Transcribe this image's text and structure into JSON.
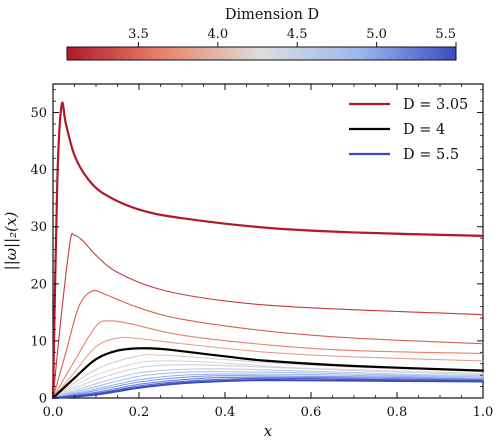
{
  "chart_data": {
    "type": "line",
    "xlabel": "x",
    "ylabel": "||ω||₂(x)",
    "xlim": [
      0,
      1.0
    ],
    "ylim": [
      0,
      55
    ],
    "x_ticks": [
      "0.0",
      "0.2",
      "0.4",
      "0.6",
      "0.8",
      "1.0"
    ],
    "y_ticks": [
      "0",
      "10",
      "20",
      "30",
      "40",
      "50"
    ],
    "x_tick_values": [
      0,
      0.2,
      0.4,
      0.6,
      0.8,
      1.0
    ],
    "y_tick_values": [
      0,
      10,
      20,
      30,
      40,
      50
    ],
    "grid": false,
    "legend_position": "top-right",
    "legend": [
      {
        "label": "D = 3.05",
        "color": "#b2182b"
      },
      {
        "label": "D = 4",
        "color": "#000000"
      },
      {
        "label": "D = 5.5",
        "color": "#3b4cc0"
      }
    ],
    "colorbar": {
      "title": "Dimension D",
      "range": [
        3.05,
        5.5
      ],
      "ticks": [
        "3.5",
        "4.0",
        "4.5",
        "5.0",
        "5.5"
      ],
      "tick_values": [
        3.5,
        4.0,
        4.5,
        5.0,
        5.5
      ],
      "colormap": "coolwarm_r",
      "colors": [
        "#b2182b",
        "#e8856b",
        "#dddddd",
        "#9db8f0",
        "#3b4cc0"
      ]
    },
    "series": [
      {
        "dimension": 3.05,
        "emphasis": "thick",
        "x": [
          0,
          0.01,
          0.02,
          0.03,
          0.05,
          0.08,
          0.12,
          0.2,
          0.3,
          0.5,
          0.7,
          1.0
        ],
        "y": [
          0,
          38,
          51.3,
          48,
          42.5,
          38.5,
          35.7,
          33,
          31.5,
          29.8,
          29,
          28.4
        ]
      },
      {
        "dimension": 3.25,
        "x": [
          0,
          0.02,
          0.04,
          0.05,
          0.07,
          0.1,
          0.15,
          0.25,
          0.4,
          0.6,
          1.0
        ],
        "y": [
          0,
          15,
          27.5,
          28.5,
          27.5,
          25,
          22,
          19,
          17,
          15.8,
          14.6
        ]
      },
      {
        "dimension": 3.45,
        "x": [
          0,
          0.03,
          0.06,
          0.09,
          0.12,
          0.2,
          0.3,
          0.5,
          0.7,
          1.0
        ],
        "y": [
          0,
          8,
          16,
          18.7,
          18.2,
          15.8,
          13.8,
          11.7,
          10.5,
          9.5
        ]
      },
      {
        "dimension": 3.65,
        "x": [
          0,
          0.05,
          0.1,
          0.13,
          0.18,
          0.3,
          0.5,
          0.7,
          1.0
        ],
        "y": [
          0,
          6.5,
          12.6,
          13.5,
          13,
          11,
          9.3,
          8.3,
          7.8
        ]
      },
      {
        "dimension": 3.85,
        "x": [
          0,
          0.05,
          0.1,
          0.15,
          0.2,
          0.3,
          0.5,
          0.7,
          1.0
        ],
        "y": [
          0,
          4.5,
          9,
          10.5,
          10.4,
          9.5,
          8,
          7.2,
          6.5
        ]
      },
      {
        "dimension": 4.0,
        "emphasis": "thick",
        "color": "#000000",
        "x": [
          0,
          0.05,
          0.1,
          0.15,
          0.2,
          0.25,
          0.3,
          0.4,
          0.5,
          0.7,
          1.0
        ],
        "y": [
          0,
          3.5,
          6.8,
          8.3,
          8.7,
          8.6,
          8.2,
          7.3,
          6.5,
          5.6,
          4.8
        ]
      },
      {
        "dimension": 4.15,
        "x": [
          0,
          0.1,
          0.2,
          0.25,
          0.3,
          0.5,
          0.7,
          1.0
        ],
        "y": [
          0,
          5,
          7.4,
          7.5,
          7.3,
          6.2,
          5.4,
          4.6
        ]
      },
      {
        "dimension": 4.3,
        "x": [
          0,
          0.1,
          0.2,
          0.25,
          0.3,
          0.4,
          0.6,
          1.0
        ],
        "y": [
          0,
          4,
          6.2,
          6.5,
          6.5,
          6.1,
          5.2,
          4.3
        ]
      },
      {
        "dimension": 4.45,
        "x": [
          0,
          0.1,
          0.2,
          0.28,
          0.35,
          0.5,
          0.7,
          1.0
        ],
        "y": [
          0,
          3.2,
          5.3,
          5.8,
          5.8,
          5.4,
          4.8,
          4.1
        ]
      },
      {
        "dimension": 4.6,
        "x": [
          0,
          0.1,
          0.2,
          0.3,
          0.4,
          0.6,
          0.8,
          1.0
        ],
        "y": [
          0,
          2.5,
          4.4,
          5,
          5.1,
          4.7,
          4.2,
          3.9
        ]
      },
      {
        "dimension": 4.75,
        "x": [
          0,
          0.1,
          0.2,
          0.3,
          0.4,
          0.6,
          0.8,
          1.0
        ],
        "y": [
          0,
          2,
          3.8,
          4.5,
          4.6,
          4.4,
          4,
          3.7
        ]
      },
      {
        "dimension": 4.9,
        "x": [
          0,
          0.1,
          0.2,
          0.3,
          0.4,
          0.6,
          0.8,
          1.0
        ],
        "y": [
          0,
          1.6,
          3.2,
          4,
          4.2,
          4.1,
          3.8,
          3.5
        ]
      },
      {
        "dimension": 5.05,
        "x": [
          0,
          0.1,
          0.2,
          0.3,
          0.4,
          0.6,
          0.8,
          1.0
        ],
        "y": [
          0,
          1.3,
          2.8,
          3.6,
          3.9,
          3.8,
          3.6,
          3.3
        ]
      },
      {
        "dimension": 5.2,
        "x": [
          0,
          0.1,
          0.2,
          0.3,
          0.4,
          0.6,
          0.8,
          1.0
        ],
        "y": [
          0,
          1,
          2.4,
          3.2,
          3.6,
          3.6,
          3.4,
          3.2
        ]
      },
      {
        "dimension": 5.35,
        "x": [
          0,
          0.1,
          0.2,
          0.3,
          0.45,
          0.6,
          0.8,
          1.0
        ],
        "y": [
          0,
          0.8,
          2.1,
          2.9,
          3.4,
          3.4,
          3.2,
          3.1
        ]
      },
      {
        "dimension": 5.5,
        "emphasis": "thick",
        "x": [
          0,
          0.1,
          0.2,
          0.3,
          0.45,
          0.6,
          0.8,
          1.0
        ],
        "y": [
          0,
          0.6,
          1.8,
          2.6,
          3.1,
          3.1,
          3,
          2.9
        ]
      }
    ]
  }
}
